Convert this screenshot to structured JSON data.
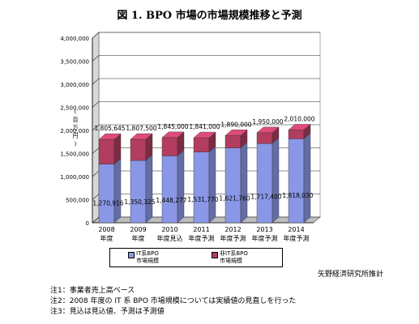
{
  "title": "図 1. BPO 市場の市場規模推移と予測",
  "chart_data": {
    "type": "bar",
    "stacked": true,
    "three_d": true,
    "ylabel": "(百万円)",
    "ylim": [
      0,
      4000000
    ],
    "yticks": [
      "0",
      "500,000",
      "1,000,000",
      "1,500,000",
      "2,000,000",
      "2,500,000",
      "3,000,000",
      "3,500,000",
      "4,000,000"
    ],
    "grid": true,
    "legend_position": "bottom",
    "categories": [
      [
        "2008",
        "年度"
      ],
      [
        "2009",
        "年度"
      ],
      [
        "2010",
        "年度見込"
      ],
      [
        "2011",
        "年度予測"
      ],
      [
        "2012",
        "年度予測"
      ],
      [
        "2013",
        "年度予測"
      ],
      [
        "2014",
        "年度予測"
      ]
    ],
    "series": [
      {
        "name": "IT系BPO市場規模",
        "color": "#8a97e6",
        "values": [
          1270916,
          1350325,
          1448277,
          1531770,
          1621760,
          1717400,
          1818030
        ],
        "labels": [
          "1,270,916",
          "1,350,325",
          "1,448,277",
          "1,531,770",
          "1,621,760",
          "1,717,400",
          "1,818,030"
        ]
      },
      {
        "name": "非IT系BPO市場規模",
        "color": "#b23d5f",
        "values": [
          534729,
          457175,
          396723,
          309230,
          268240,
          232600,
          191970
        ]
      }
    ],
    "totals": [
      1805645,
      1807500,
      1845000,
      1841000,
      1890000,
      1950000,
      2010000
    ],
    "total_labels": [
      "1,805,645",
      "1,807,500",
      "1,845,000",
      "1,841,000",
      "1,890,000",
      "1,950,000",
      "2,010,000"
    ]
  },
  "legend": {
    "it_line1": "IT系BPO",
    "it_line2": "市場規模",
    "nonit_line1": "非IT系BPO",
    "nonit_line2": "市場規模"
  },
  "source": "矢野経済研究所推計",
  "notes": [
    "注1：事業者売上高ベース",
    "注2：2008 年度の IT 系 BPO 市場規模については実績値の見直しを行った",
    "注3：見込は見込値、予測は予測値"
  ]
}
